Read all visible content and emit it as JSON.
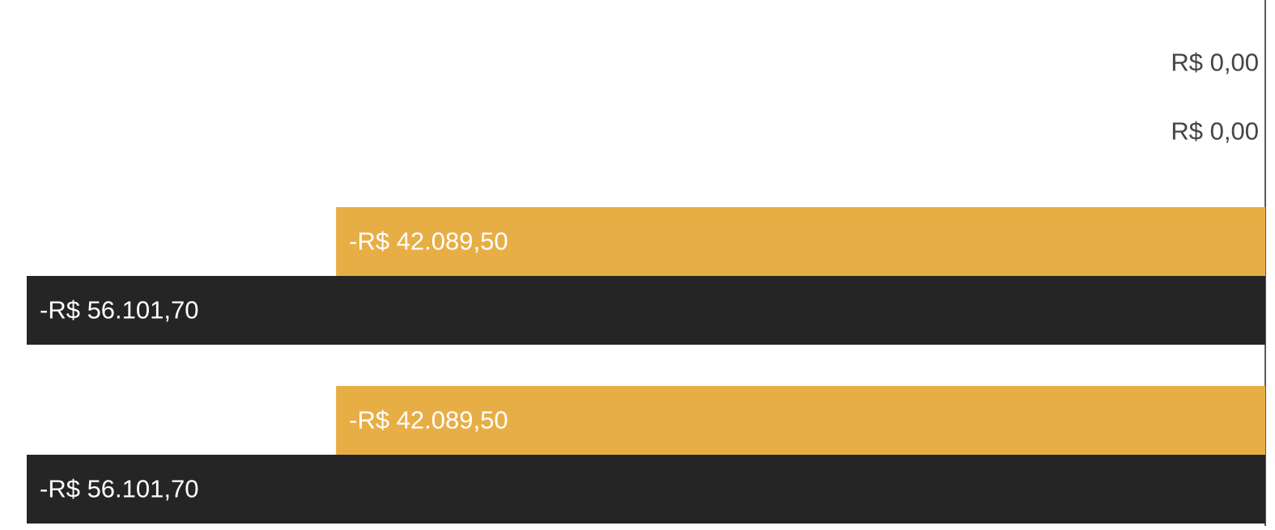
{
  "chart_data": {
    "type": "hbar",
    "categories": [
      null,
      null,
      null
    ],
    "xlim": [
      -56101.7,
      0
    ],
    "series": [
      {
        "color": "#e8ae46",
        "values": [
          0,
          -42089.5,
          -42089.5
        ],
        "value_labels": [
          "R$ 0,00",
          "-R$ 42.089,50",
          "-R$ 42.089,50"
        ]
      },
      {
        "color": "#252525",
        "values": [
          0,
          -56101.7,
          -56101.7
        ],
        "value_labels": [
          "R$ 0,00",
          "-R$ 56.101,70",
          "-R$ 56.101,70"
        ]
      }
    ]
  }
}
